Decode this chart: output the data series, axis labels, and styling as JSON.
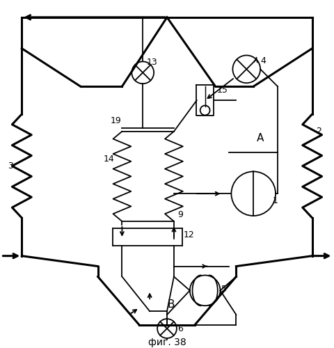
{
  "title": "фиг. 38",
  "bg_color": "#ffffff",
  "line_color": "#000000",
  "lw": 1.3,
  "tlw": 2.2
}
